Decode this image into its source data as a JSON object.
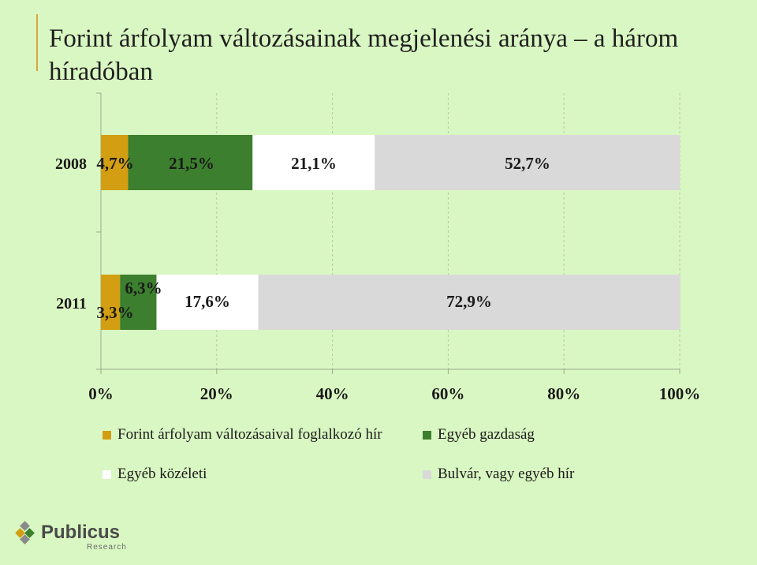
{
  "title": "Forint árfolyam változásainak megjelenési aránya – a három híradóban",
  "chart_data": {
    "type": "bar",
    "orientation": "horizontal",
    "stacked": true,
    "categories": [
      "2008",
      "2011"
    ],
    "series": [
      {
        "name": "Forint árfolyam változásaival foglalkozó hír",
        "color": "#d39e12",
        "values": [
          4.7,
          3.3
        ],
        "labels": [
          "4,7%",
          "3,3%"
        ]
      },
      {
        "name": "Egyéb gazdaság",
        "color": "#3c7f2e",
        "values": [
          21.5,
          6.3
        ],
        "labels": [
          "21,5%",
          "6,3%"
        ]
      },
      {
        "name": "Egyéb közéleti",
        "color": "#ffffff",
        "values": [
          21.1,
          17.6
        ],
        "labels": [
          "21,1%",
          "17,6%"
        ]
      },
      {
        "name": "Bulvár, vagy egyéb hír",
        "color": "#d9d9d9",
        "values": [
          52.7,
          72.9
        ],
        "labels": [
          "52,7%",
          "72,9%"
        ]
      }
    ],
    "xlim": [
      0,
      100
    ],
    "xticks": [
      "0%",
      "20%",
      "40%",
      "60%",
      "80%",
      "100%"
    ],
    "grid": true,
    "legend_position": "bottom"
  },
  "logo": {
    "name": "Publicus",
    "subtitle": "Research",
    "icon": "diamond-logo-icon"
  }
}
